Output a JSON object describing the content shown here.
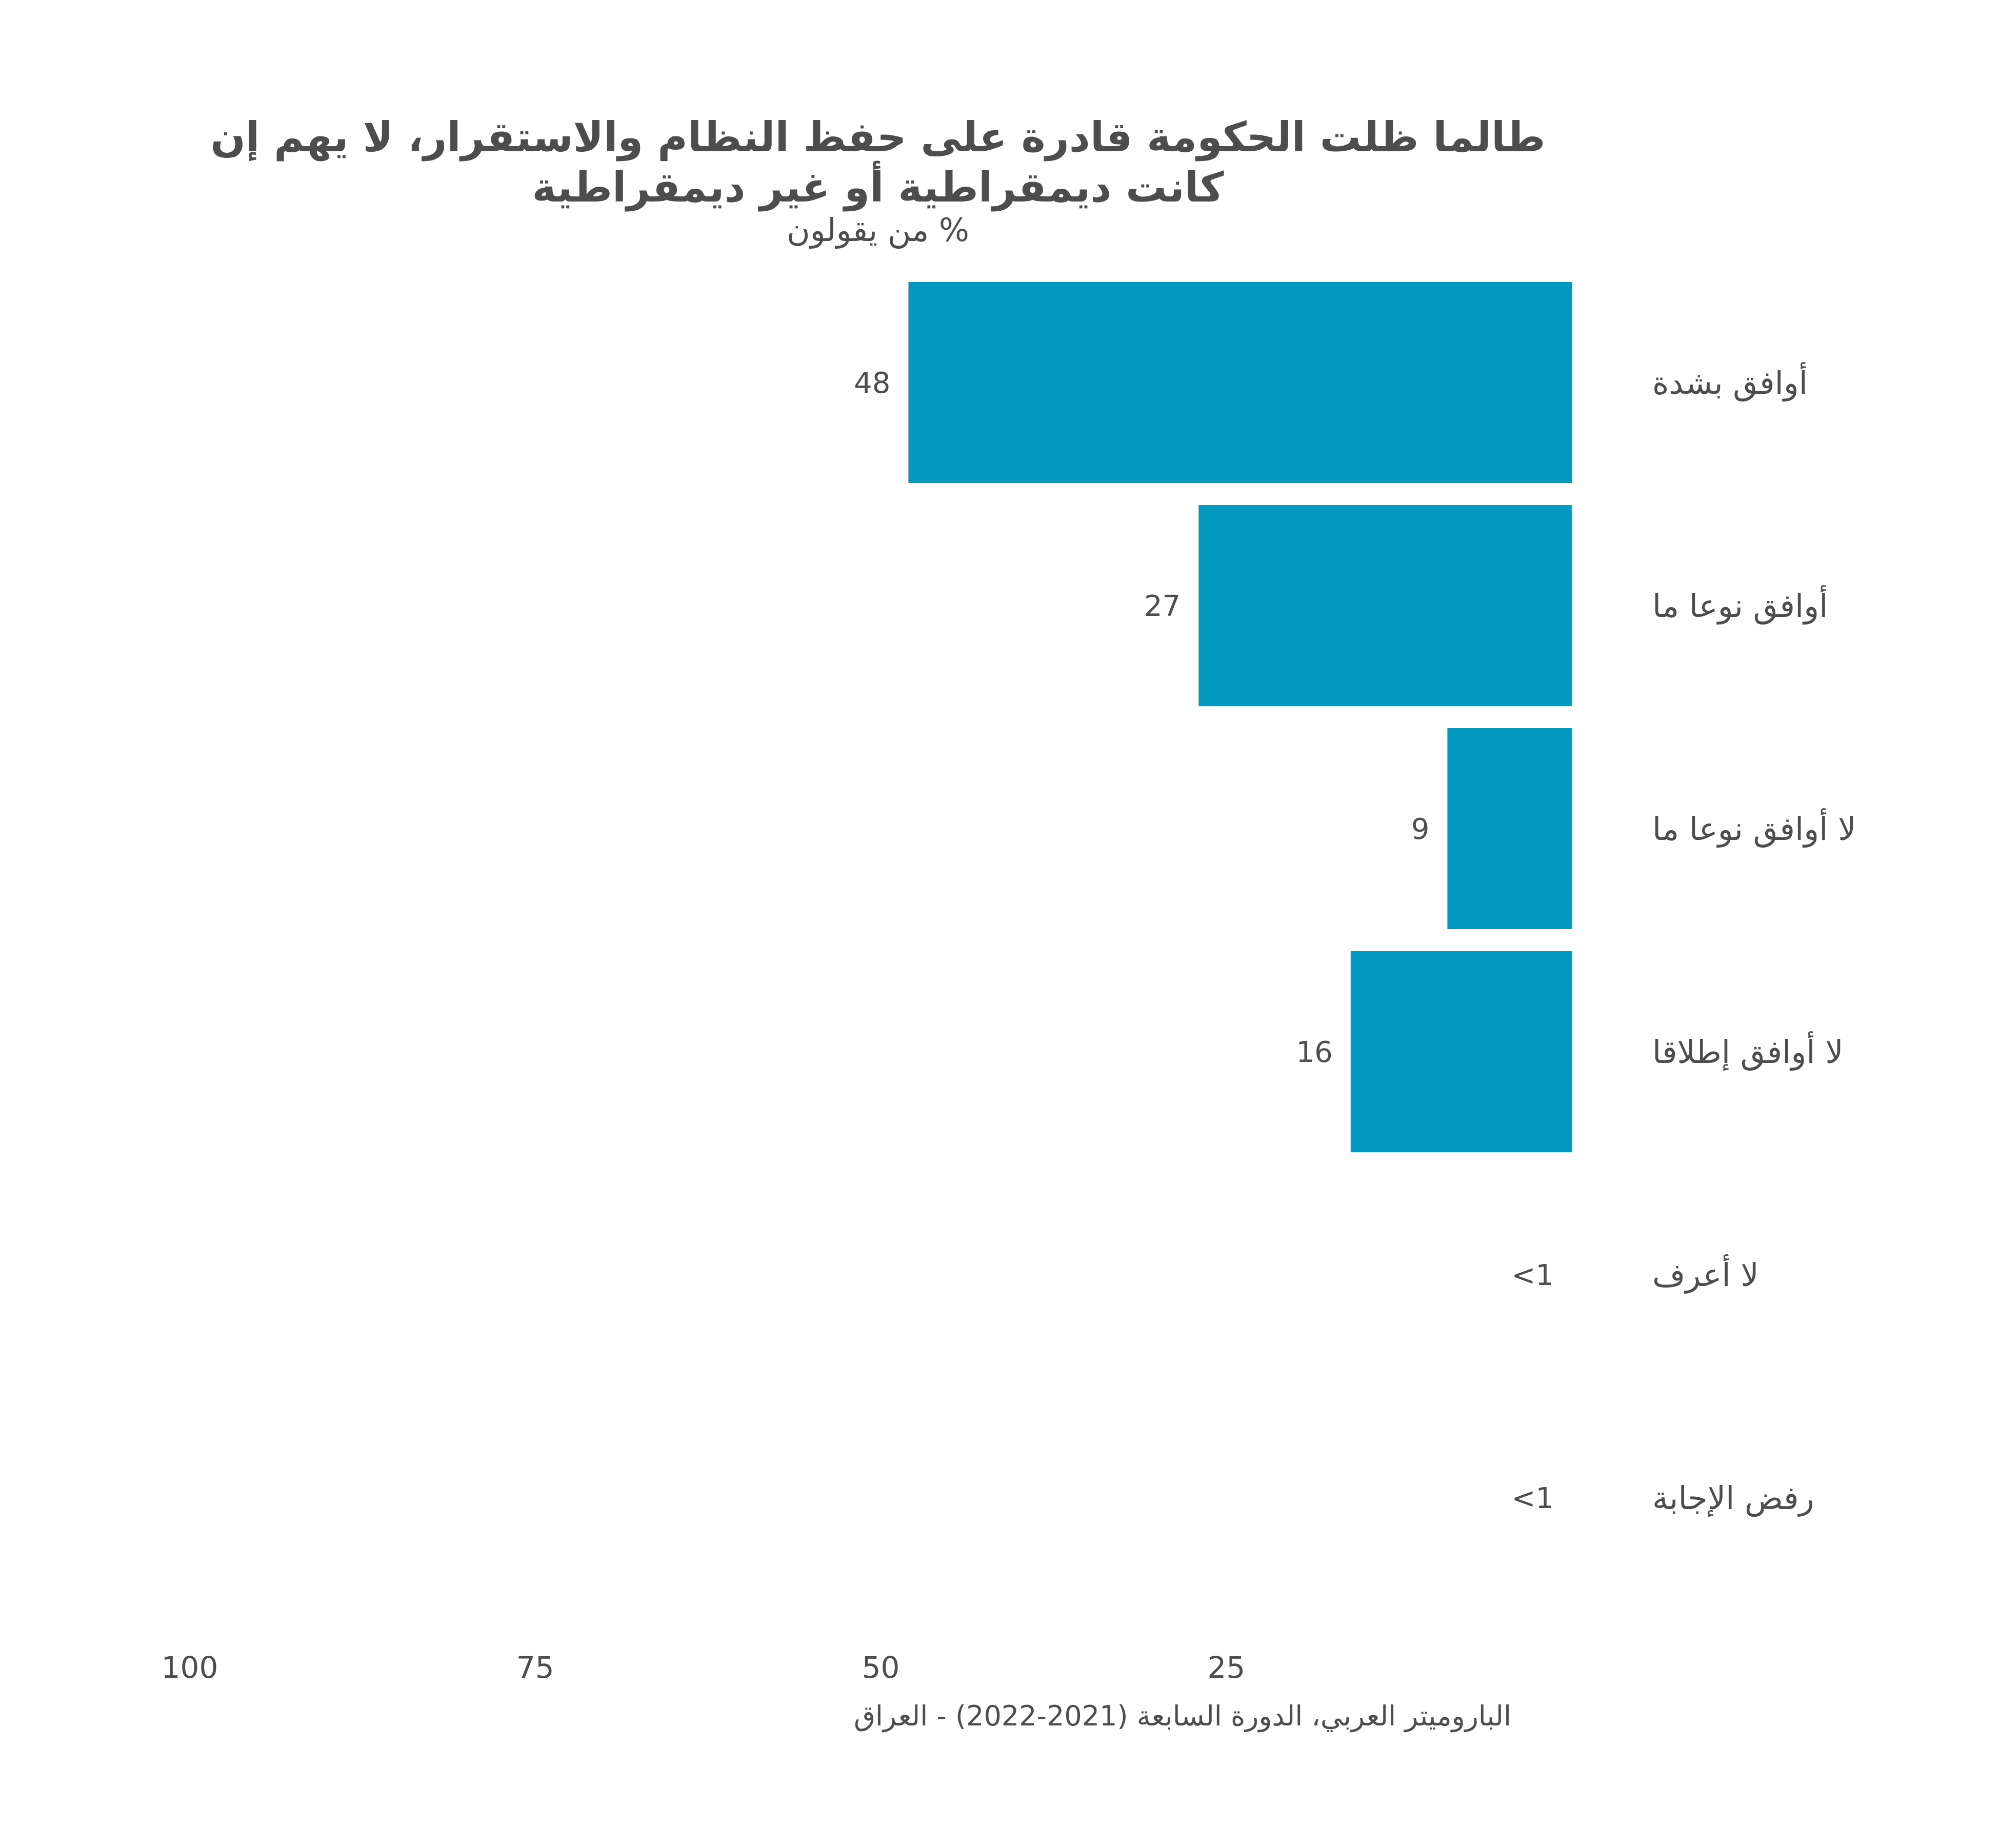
{
  "chart_data": {
    "type": "bar",
    "orientation": "horizontal",
    "direction": "right-to-left",
    "title_line1": "طالما ظلت الحكومة قادرة على حفظ النظام والاستقرار، لا يهم إن",
    "title_line2": "كانت ديمقراطية أو غير ديمقراطية",
    "subtitle": "% من يقولون",
    "categories": [
      "أوافق بشدة",
      "أوافق نوعا ما",
      "لا أوافق نوعا ما",
      "لا أوافق إطلاقا",
      "لا أعرف",
      "رفض الإجابة"
    ],
    "values": [
      48,
      27,
      9,
      16,
      0,
      0
    ],
    "value_labels": [
      "48",
      "27",
      "9",
      "16",
      "<1",
      "<1"
    ],
    "xlim": [
      0,
      100
    ],
    "ticks": [
      25,
      50,
      75,
      100
    ],
    "tick_labels": [
      "25",
      "50",
      "75",
      "100"
    ],
    "bar_color": "#0098BF",
    "grid": false,
    "source": "الباروميتر العربي، الدورة السابعة (2021-2022) - العراق"
  }
}
